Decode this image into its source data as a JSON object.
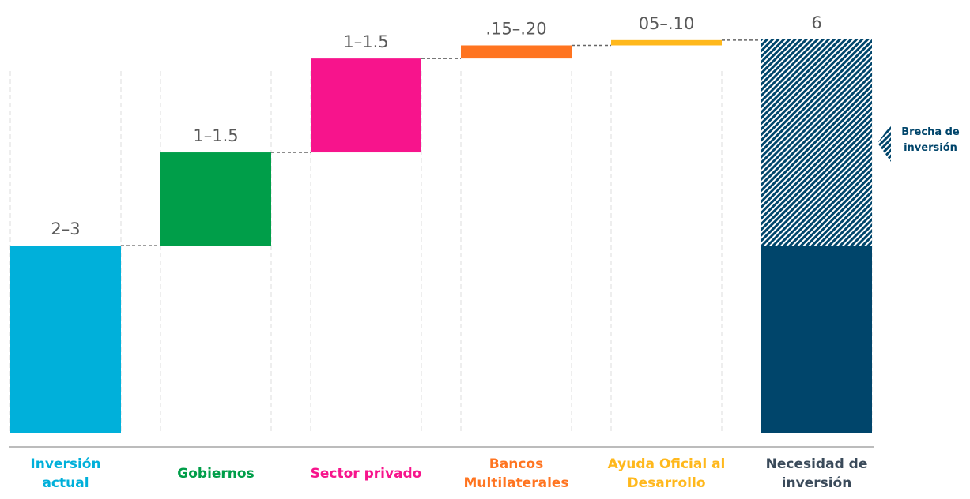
{
  "chart_data": {
    "type": "waterfall",
    "categories": [
      "Inversión actual",
      "Gobiernos",
      "Sector privado",
      "Bancos Multilaterales",
      "Ayuda Oficial al Desarrollo"
    ],
    "values": [
      2.86,
      1.42,
      1.43,
      0.2,
      0.08
    ],
    "value_labels": [
      "2–3",
      "1–1.5",
      "1–1.5",
      ".15–.20",
      "05–.10"
    ],
    "colors": [
      "#00b0da",
      "#009e49",
      "#f7148c",
      "#ff7420",
      "#ffb81c"
    ],
    "total": {
      "category": "Necesidad de inversión",
      "value": 6,
      "value_label": "6",
      "color": "#00456b"
    },
    "gap_label": "Brecha de inversión",
    "ylim": [
      0,
      6
    ]
  }
}
